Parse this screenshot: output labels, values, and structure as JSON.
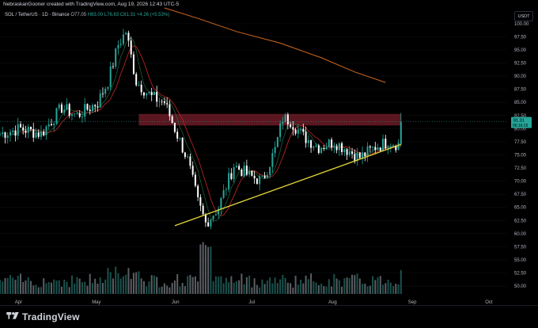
{
  "header": {
    "watermark": "NebraskanGooner created with TradingView.com, Aug 19, 2026 12:43 UTC-5",
    "symbol": "SOL / TetherUS · 1D · Binance",
    "ohlc": {
      "open": "O77.05",
      "high": "H83.00",
      "low": "L76.63",
      "close": "C81.31",
      "change": "+4.26 (+5.53%)"
    },
    "currency_button": "USDT"
  },
  "price_axis": {
    "ticks": [
      "100.00",
      "97.50",
      "95.00",
      "92.50",
      "90.00",
      "87.50",
      "85.00",
      "82.50",
      "80.00",
      "77.50",
      "75.00",
      "72.50",
      "70.00",
      "67.50",
      "65.00",
      "62.50",
      "60.00",
      "57.50",
      "55.00",
      "52.50",
      "50.00"
    ],
    "last_price_label": "81.31",
    "countdown_label": "06:16:15",
    "last_price_color": "#26a69a"
  },
  "time_axis": {
    "ticks": [
      "Apr",
      "May",
      "Jun",
      "Jul",
      "Aug",
      "Sep",
      "Oct"
    ]
  },
  "chart_data": {
    "type": "candlestick",
    "symbol": "SOL/USDT",
    "timeframe": "1D",
    "y_range": [
      48.5,
      103
    ],
    "x_range": [
      "2026-03-25",
      "2026-10-08"
    ],
    "last_close": 81.31,
    "resistance_zone": {
      "from_date": "2026-05-18",
      "to_date": "2026-08-28",
      "low": 80.6,
      "high": 82.8,
      "color": "#7a1f2b"
    },
    "support_trendline": {
      "from": [
        "2026-06-01",
        61.5
      ],
      "to": [
        "2026-08-28",
        77.0
      ],
      "color": "#e6d93a"
    },
    "moving_average_long": {
      "color": "#d2691e",
      "points": [
        [
          "2026-05-28",
          103
        ],
        [
          "2026-06-10",
          101
        ],
        [
          "2026-06-25",
          98.5
        ],
        [
          "2026-07-12",
          96.3
        ],
        [
          "2026-07-28",
          93.5
        ],
        [
          "2026-08-10",
          90.8
        ],
        [
          "2026-08-22",
          88.8
        ]
      ]
    },
    "candle_colors": {
      "up": "#26a69a",
      "down": "#ffffff"
    },
    "volume_colors": {
      "up": "#1e5f5a",
      "down": "#6b6e76"
    },
    "keypoints": [
      [
        "2026-03-25",
        79
      ],
      [
        "2026-04-02",
        80
      ],
      [
        "2026-04-10",
        79
      ],
      [
        "2026-04-18",
        84
      ],
      [
        "2026-04-24",
        82.5
      ],
      [
        "2026-05-02",
        85
      ],
      [
        "2026-05-06",
        89
      ],
      [
        "2026-05-10",
        96
      ],
      [
        "2026-05-13",
        98.5
      ],
      [
        "2026-05-17",
        89
      ],
      [
        "2026-05-23",
        86
      ],
      [
        "2026-05-28",
        85
      ],
      [
        "2026-06-01",
        80
      ],
      [
        "2026-06-06",
        74
      ],
      [
        "2026-06-10",
        66
      ],
      [
        "2026-06-13",
        62
      ],
      [
        "2026-06-18",
        65
      ],
      [
        "2026-06-24",
        73
      ],
      [
        "2026-06-30",
        71
      ],
      [
        "2026-07-05",
        70
      ],
      [
        "2026-07-10",
        76
      ],
      [
        "2026-07-13",
        82
      ],
      [
        "2026-07-16",
        81.5
      ],
      [
        "2026-07-21",
        78.5
      ],
      [
        "2026-07-27",
        76.5
      ],
      [
        "2026-08-02",
        77.5
      ],
      [
        "2026-08-07",
        76
      ],
      [
        "2026-08-12",
        74.5
      ],
      [
        "2026-08-18",
        76.5
      ],
      [
        "2026-08-23",
        77.5
      ],
      [
        "2026-08-27",
        77
      ],
      [
        "2026-08-28",
        81.3
      ]
    ]
  },
  "footer": {
    "brand": "TradingView"
  }
}
